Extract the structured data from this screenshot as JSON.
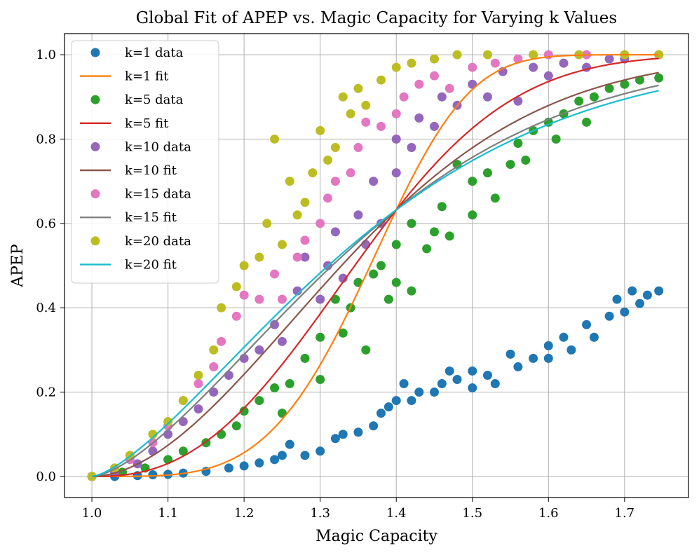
{
  "chart_data": {
    "type": "scatter",
    "title": "Global Fit of APEP vs. Magic Capacity for Varying k Values",
    "xlabel": "Magic Capacity",
    "ylabel": "APEP",
    "xlim": [
      0.964,
      1.784
    ],
    "ylim": [
      -0.05,
      1.05
    ],
    "xticks": [
      1.0,
      1.1,
      1.2,
      1.3,
      1.4,
      1.5,
      1.6,
      1.7
    ],
    "xtick_labels": [
      "1.0",
      "1.1",
      "1.2",
      "1.3",
      "1.4",
      "1.5",
      "1.6",
      "1.7"
    ],
    "yticks": [
      0.0,
      0.2,
      0.4,
      0.6,
      0.8,
      1.0
    ],
    "ytick_labels": [
      "0.0",
      "0.2",
      "0.4",
      "0.6",
      "0.8",
      "1.0"
    ],
    "grid": true,
    "legend_position": "upper-left",
    "series": [
      {
        "name": "k=1 data",
        "kind": "scatter",
        "color": "#1f77b4",
        "points": [
          [
            1.0,
            0.0
          ],
          [
            1.03,
            0.0
          ],
          [
            1.06,
            0.002
          ],
          [
            1.08,
            0.004
          ],
          [
            1.1,
            0.005
          ],
          [
            1.12,
            0.008
          ],
          [
            1.15,
            0.012
          ],
          [
            1.18,
            0.02
          ],
          [
            1.2,
            0.025
          ],
          [
            1.22,
            0.032
          ],
          [
            1.24,
            0.04
          ],
          [
            1.25,
            0.05
          ],
          [
            1.26,
            0.076
          ],
          [
            1.28,
            0.05
          ],
          [
            1.3,
            0.06
          ],
          [
            1.32,
            0.09
          ],
          [
            1.33,
            0.1
          ],
          [
            1.35,
            0.105
          ],
          [
            1.37,
            0.12
          ],
          [
            1.38,
            0.15
          ],
          [
            1.39,
            0.165
          ],
          [
            1.4,
            0.18
          ],
          [
            1.41,
            0.22
          ],
          [
            1.42,
            0.18
          ],
          [
            1.43,
            0.2
          ],
          [
            1.45,
            0.2
          ],
          [
            1.46,
            0.22
          ],
          [
            1.47,
            0.25
          ],
          [
            1.48,
            0.23
          ],
          [
            1.5,
            0.25
          ],
          [
            1.5,
            0.21
          ],
          [
            1.52,
            0.24
          ],
          [
            1.53,
            0.22
          ],
          [
            1.55,
            0.29
          ],
          [
            1.56,
            0.26
          ],
          [
            1.58,
            0.28
          ],
          [
            1.6,
            0.31
          ],
          [
            1.6,
            0.28
          ],
          [
            1.62,
            0.33
          ],
          [
            1.63,
            0.3
          ],
          [
            1.65,
            0.36
          ],
          [
            1.66,
            0.33
          ],
          [
            1.68,
            0.38
          ],
          [
            1.69,
            0.42
          ],
          [
            1.7,
            0.39
          ],
          [
            1.71,
            0.44
          ],
          [
            1.72,
            0.41
          ],
          [
            1.73,
            0.43
          ],
          [
            1.745,
            0.44
          ]
        ]
      },
      {
        "name": "k=1 fit",
        "kind": "line",
        "color": "#ff7f0e",
        "model": "fit",
        "params": [
          0.4,
          4.1
        ]
      },
      {
        "name": "k=5 data",
        "kind": "scatter",
        "color": "#2ca02c",
        "points": [
          [
            1.0,
            0.0
          ],
          [
            1.04,
            0.01
          ],
          [
            1.07,
            0.02
          ],
          [
            1.1,
            0.04
          ],
          [
            1.12,
            0.06
          ],
          [
            1.15,
            0.08
          ],
          [
            1.17,
            0.1
          ],
          [
            1.19,
            0.12
          ],
          [
            1.2,
            0.155
          ],
          [
            1.22,
            0.18
          ],
          [
            1.24,
            0.21
          ],
          [
            1.25,
            0.15
          ],
          [
            1.26,
            0.22
          ],
          [
            1.28,
            0.28
          ],
          [
            1.3,
            0.23
          ],
          [
            1.3,
            0.33
          ],
          [
            1.32,
            0.42
          ],
          [
            1.33,
            0.34
          ],
          [
            1.34,
            0.4
          ],
          [
            1.35,
            0.46
          ],
          [
            1.36,
            0.3
          ],
          [
            1.37,
            0.48
          ],
          [
            1.38,
            0.5
          ],
          [
            1.39,
            0.42
          ],
          [
            1.4,
            0.46
          ],
          [
            1.4,
            0.55
          ],
          [
            1.42,
            0.6
          ],
          [
            1.42,
            0.44
          ],
          [
            1.44,
            0.54
          ],
          [
            1.45,
            0.58
          ],
          [
            1.46,
            0.64
          ],
          [
            1.47,
            0.57
          ],
          [
            1.48,
            0.74
          ],
          [
            1.5,
            0.62
          ],
          [
            1.5,
            0.7
          ],
          [
            1.52,
            0.72
          ],
          [
            1.53,
            0.66
          ],
          [
            1.55,
            0.74
          ],
          [
            1.56,
            0.79
          ],
          [
            1.57,
            0.75
          ],
          [
            1.58,
            0.82
          ],
          [
            1.6,
            0.84
          ],
          [
            1.61,
            0.8
          ],
          [
            1.62,
            0.86
          ],
          [
            1.64,
            0.89
          ],
          [
            1.65,
            0.84
          ],
          [
            1.66,
            0.9
          ],
          [
            1.68,
            0.92
          ],
          [
            1.7,
            0.93
          ],
          [
            1.72,
            0.94
          ],
          [
            1.745,
            0.945
          ]
        ]
      },
      {
        "name": "k=5 fit",
        "kind": "line",
        "color": "#d62728",
        "model": "fit",
        "params": [
          0.4,
          2.5
        ]
      },
      {
        "name": "k=10 data",
        "kind": "scatter",
        "color": "#9467bd",
        "points": [
          [
            1.0,
            0.0
          ],
          [
            1.03,
            0.01
          ],
          [
            1.06,
            0.03
          ],
          [
            1.08,
            0.06
          ],
          [
            1.1,
            0.1
          ],
          [
            1.12,
            0.13
          ],
          [
            1.14,
            0.16
          ],
          [
            1.16,
            0.2
          ],
          [
            1.18,
            0.24
          ],
          [
            1.2,
            0.28
          ],
          [
            1.22,
            0.3
          ],
          [
            1.24,
            0.36
          ],
          [
            1.25,
            0.32
          ],
          [
            1.27,
            0.44
          ],
          [
            1.28,
            0.52
          ],
          [
            1.3,
            0.42
          ],
          [
            1.31,
            0.5
          ],
          [
            1.32,
            0.58
          ],
          [
            1.33,
            0.47
          ],
          [
            1.35,
            0.62
          ],
          [
            1.36,
            0.55
          ],
          [
            1.37,
            0.7
          ],
          [
            1.38,
            0.6
          ],
          [
            1.4,
            0.72
          ],
          [
            1.4,
            0.8
          ],
          [
            1.42,
            0.78
          ],
          [
            1.43,
            0.85
          ],
          [
            1.45,
            0.83
          ],
          [
            1.46,
            0.9
          ],
          [
            1.48,
            0.88
          ],
          [
            1.5,
            0.93
          ],
          [
            1.52,
            0.9
          ],
          [
            1.54,
            0.96
          ],
          [
            1.56,
            0.89
          ],
          [
            1.58,
            0.97
          ],
          [
            1.6,
            0.95
          ],
          [
            1.62,
            0.98
          ],
          [
            1.65,
            0.97
          ],
          [
            1.68,
            0.99
          ],
          [
            1.7,
            0.99
          ],
          [
            1.745,
            1.0
          ]
        ]
      },
      {
        "name": "k=10 fit",
        "kind": "line",
        "color": "#8c564b",
        "model": "fit",
        "params": [
          0.4,
          1.85
        ]
      },
      {
        "name": "k=15 data",
        "kind": "scatter",
        "color": "#e377c2",
        "points": [
          [
            1.0,
            0.0
          ],
          [
            1.03,
            0.02
          ],
          [
            1.05,
            0.04
          ],
          [
            1.08,
            0.08
          ],
          [
            1.1,
            0.12
          ],
          [
            1.12,
            0.18
          ],
          [
            1.14,
            0.22
          ],
          [
            1.16,
            0.26
          ],
          [
            1.17,
            0.32
          ],
          [
            1.19,
            0.38
          ],
          [
            1.2,
            0.43
          ],
          [
            1.22,
            0.42
          ],
          [
            1.24,
            0.48
          ],
          [
            1.25,
            0.42
          ],
          [
            1.27,
            0.52
          ],
          [
            1.28,
            0.56
          ],
          [
            1.3,
            0.6
          ],
          [
            1.31,
            0.66
          ],
          [
            1.32,
            0.7
          ],
          [
            1.34,
            0.72
          ],
          [
            1.35,
            0.78
          ],
          [
            1.36,
            0.84
          ],
          [
            1.38,
            0.83
          ],
          [
            1.4,
            0.86
          ],
          [
            1.41,
            0.9
          ],
          [
            1.43,
            0.93
          ],
          [
            1.45,
            0.95
          ],
          [
            1.47,
            0.92
          ],
          [
            1.5,
            0.97
          ],
          [
            1.53,
            0.98
          ],
          [
            1.56,
            0.99
          ],
          [
            1.6,
            1.0
          ],
          [
            1.65,
            1.0
          ],
          [
            1.7,
            1.0
          ],
          [
            1.745,
            1.0
          ]
        ]
      },
      {
        "name": "k=15 fit",
        "kind": "line",
        "color": "#7f7f7f",
        "model": "fit",
        "params": [
          0.4,
          1.55
        ]
      },
      {
        "name": "k=20 data",
        "kind": "scatter",
        "color": "#bcbd22",
        "points": [
          [
            1.0,
            0.0
          ],
          [
            1.03,
            0.02
          ],
          [
            1.05,
            0.05
          ],
          [
            1.08,
            0.1
          ],
          [
            1.1,
            0.13
          ],
          [
            1.12,
            0.18
          ],
          [
            1.14,
            0.24
          ],
          [
            1.16,
            0.3
          ],
          [
            1.17,
            0.4
          ],
          [
            1.19,
            0.45
          ],
          [
            1.2,
            0.5
          ],
          [
            1.22,
            0.52
          ],
          [
            1.23,
            0.6
          ],
          [
            1.24,
            0.8
          ],
          [
            1.25,
            0.55
          ],
          [
            1.26,
            0.7
          ],
          [
            1.27,
            0.62
          ],
          [
            1.28,
            0.65
          ],
          [
            1.29,
            0.72
          ],
          [
            1.3,
            0.82
          ],
          [
            1.31,
            0.75
          ],
          [
            1.32,
            0.78
          ],
          [
            1.33,
            0.9
          ],
          [
            1.34,
            0.86
          ],
          [
            1.35,
            0.92
          ],
          [
            1.36,
            0.88
          ],
          [
            1.38,
            0.94
          ],
          [
            1.4,
            0.97
          ],
          [
            1.42,
            0.98
          ],
          [
            1.45,
            0.99
          ],
          [
            1.48,
            1.0
          ],
          [
            1.52,
            1.0
          ],
          [
            1.58,
            1.0
          ],
          [
            1.64,
            1.0
          ],
          [
            1.7,
            1.0
          ],
          [
            1.745,
            1.0
          ]
        ]
      },
      {
        "name": "k=20 fit",
        "kind": "line",
        "color": "#17becf",
        "model": "fit",
        "params": [
          0.4,
          1.45
        ]
      }
    ],
    "fit_x_range": [
      1.0,
      1.745
    ]
  }
}
